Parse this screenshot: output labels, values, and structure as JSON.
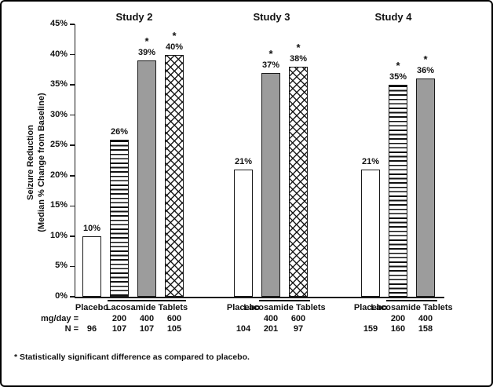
{
  "frame": {
    "background": "#ffffff",
    "border_color": "#000000"
  },
  "chart_data": {
    "type": "bar",
    "title": "",
    "ylabel_line1": "Seizure Reduction",
    "ylabel_line2": "(Median % Change from Baseline)",
    "ylim": [
      0,
      45
    ],
    "y_tick_step": 5,
    "y_tick_labels": [
      "0%",
      "5%",
      "10%",
      "15%",
      "20%",
      "25%",
      "30%",
      "35%",
      "40%",
      "45%"
    ],
    "grid": false,
    "legend": "none",
    "significance_marker": "*",
    "group_labels": {
      "placebo": "Placebo",
      "treatment": "Lacosamide Tablets"
    },
    "row_labels": {
      "dose": "mg/day =",
      "n": "N ="
    },
    "footnote": "* Statistically significant difference as compared to placebo.",
    "colors": {
      "gray_bar": "#9c9c9c",
      "bar_border": "#1a1a1a",
      "text": "#111111"
    },
    "studies": [
      {
        "name": "Study 2",
        "bars": [
          {
            "arm": "Placebo",
            "dose_mg_day": null,
            "n": 96,
            "value": 10,
            "label": "10%",
            "pattern": "white",
            "significant": false
          },
          {
            "arm": "Lacosamide",
            "dose_mg_day": 200,
            "n": 107,
            "value": 26,
            "label": "26%",
            "pattern": "hstripe",
            "significant": false
          },
          {
            "arm": "Lacosamide",
            "dose_mg_day": 400,
            "n": 107,
            "value": 39,
            "label": "39%",
            "pattern": "gray",
            "significant": true
          },
          {
            "arm": "Lacosamide",
            "dose_mg_day": 600,
            "n": 105,
            "value": 40,
            "label": "40%",
            "pattern": "crosshatch",
            "significant": true
          }
        ]
      },
      {
        "name": "Study 3",
        "bars": [
          {
            "arm": "Placebo",
            "dose_mg_day": null,
            "n": 104,
            "value": 21,
            "label": "21%",
            "pattern": "white",
            "significant": false
          },
          {
            "arm": "Lacosamide",
            "dose_mg_day": 400,
            "n": 201,
            "value": 37,
            "label": "37%",
            "pattern": "gray",
            "significant": true
          },
          {
            "arm": "Lacosamide",
            "dose_mg_day": 600,
            "n": 97,
            "value": 38,
            "label": "38%",
            "pattern": "crosshatch",
            "significant": true
          }
        ]
      },
      {
        "name": "Study 4",
        "bars": [
          {
            "arm": "Placebo",
            "dose_mg_day": null,
            "n": 159,
            "value": 21,
            "label": "21%",
            "pattern": "white",
            "significant": false
          },
          {
            "arm": "Lacosamide",
            "dose_mg_day": 200,
            "n": 160,
            "value": 35,
            "label": "35%",
            "pattern": "hstripe",
            "significant": true
          },
          {
            "arm": "Lacosamide",
            "dose_mg_day": 400,
            "n": 158,
            "value": 36,
            "label": "36%",
            "pattern": "gray",
            "significant": true
          }
        ]
      }
    ]
  }
}
